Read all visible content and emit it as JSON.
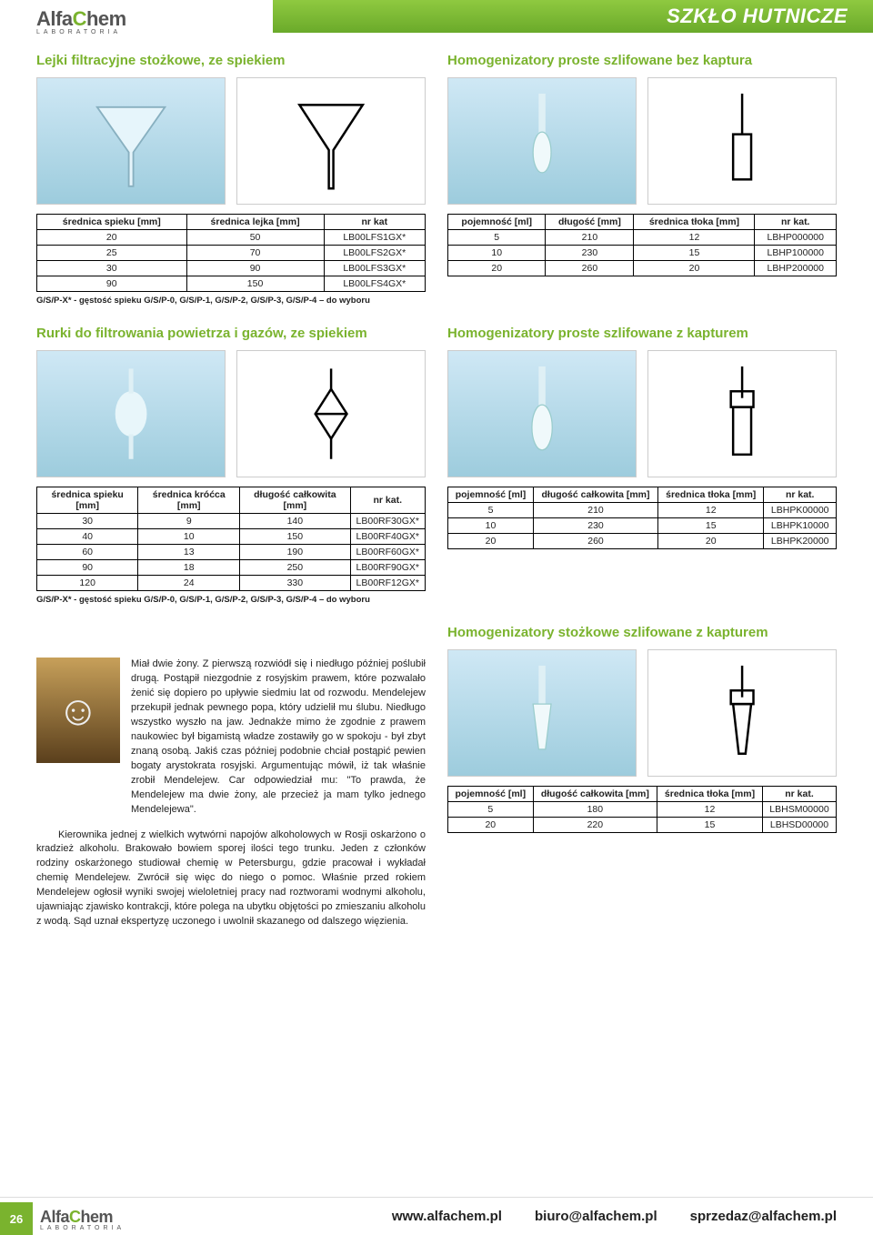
{
  "brand": {
    "name_a": "Alfa",
    "name_c": "C",
    "name_rest": "hem",
    "sub": "LABORATORIA"
  },
  "banner_title": "SZKŁO HUTNICZE",
  "page_number": "26",
  "footer": {
    "url": "www.alfachem.pl",
    "email1": "biuro@alfachem.pl",
    "email2": "sprzedaz@alfachem.pl"
  },
  "sec1": {
    "title": "Lejki filtracyjne stożkowe, ze spiekiem",
    "headers": [
      "średnica spieku [mm]",
      "średnica lejka [mm]",
      "nr kat"
    ],
    "rows": [
      [
        "20",
        "50",
        "LB00LFS1GX*"
      ],
      [
        "25",
        "70",
        "LB00LFS2GX*"
      ],
      [
        "30",
        "90",
        "LB00LFS3GX*"
      ],
      [
        "90",
        "150",
        "LB00LFS4GX*"
      ]
    ],
    "footnote": "G/S/P-X* - gęstość spieku G/S/P-0, G/S/P-1, G/S/P-2, G/S/P-3, G/S/P-4 – do wyboru"
  },
  "sec2": {
    "title": "Homogenizatory proste szlifowane bez kaptura",
    "headers": [
      "pojemność [ml]",
      "długość [mm]",
      "średnica tłoka [mm]",
      "nr kat."
    ],
    "rows": [
      [
        "5",
        "210",
        "12",
        "LBHP000000"
      ],
      [
        "10",
        "230",
        "15",
        "LBHP100000"
      ],
      [
        "20",
        "260",
        "20",
        "LBHP200000"
      ]
    ]
  },
  "sec3": {
    "title": "Rurki do filtrowania powietrza i gazów, ze spiekiem",
    "headers": [
      "średnica spieku [mm]",
      "średnica króćca [mm]",
      "długość całkowita [mm]",
      "nr kat."
    ],
    "rows": [
      [
        "30",
        "9",
        "140",
        "LB00RF30GX*"
      ],
      [
        "40",
        "10",
        "150",
        "LB00RF40GX*"
      ],
      [
        "60",
        "13",
        "190",
        "LB00RF60GX*"
      ],
      [
        "90",
        "18",
        "250",
        "LB00RF90GX*"
      ],
      [
        "120",
        "24",
        "330",
        "LB00RF12GX*"
      ]
    ],
    "footnote": "G/S/P-X* - gęstość spieku G/S/P-0, G/S/P-1, G/S/P-2, G/S/P-3, G/S/P-4 – do wyboru"
  },
  "sec4": {
    "title": "Homogenizatory proste szlifowane z kapturem",
    "headers": [
      "pojemność [ml]",
      "długość całkowita [mm]",
      "średnica tłoka [mm]",
      "nr kat."
    ],
    "rows": [
      [
        "5",
        "210",
        "12",
        "LBHPK00000"
      ],
      [
        "10",
        "230",
        "15",
        "LBHPK10000"
      ],
      [
        "20",
        "260",
        "20",
        "LBHPK20000"
      ]
    ]
  },
  "sec5": {
    "title": "Homogenizatory stożkowe szlifowane z kapturem",
    "headers": [
      "pojemność [ml]",
      "długość całkowita [mm]",
      "średnica tłoka [mm]",
      "nr kat."
    ],
    "rows": [
      [
        "5",
        "180",
        "12",
        "LBHSM00000"
      ],
      [
        "20",
        "220",
        "15",
        "LBHSD00000"
      ]
    ]
  },
  "story": {
    "p1": "Miał dwie żony. Z pierwszą rozwiódł się i niedługo później poślubił drugą. Postąpił niezgodnie z rosyjskim prawem, które pozwalało żenić się dopiero po upływie siedmiu lat od rozwodu. Mendelejew przekupił jednak pewnego popa, który udzielił mu ślubu. Niedługo wszystko wyszło na jaw. Jednakże mimo że zgodnie z prawem naukowiec był bigamistą władze zostawiły go w spokoju - był zbyt znaną osobą. Jakiś czas później podobnie chciał postąpić pewien bogaty arystokrata rosyjski. Argumentując mówił, iż tak właśnie zrobił Mendelejew. Car odpowiedział mu: \"To prawda, że Mendelejew ma dwie żony, ale przecież ja mam tylko jednego Mendelejewa\".",
    "p2": "Kierownika jednej z wielkich wytwórni napojów alkoholowych w Rosji oskarżono o kradzież alkoholu. Brakowało bowiem sporej ilości tego trunku. Jeden z członków rodziny oskarżonego studiował chemię w Petersburgu, gdzie pracował i wykładał chemię Mendelejew. Zwrócił się więc do niego o pomoc. Właśnie przed rokiem Mendelejew ogłosił wyniki swojej wieloletniej pracy nad roztworami wodnymi alkoholu, ujawniając zjawisko kontrakcji, które polega na ubytku objętości po zmieszaniu alkoholu z wodą. Sąd uznał ekspertyzę uczonego i uwolnił skazanego od dalszego więzienia."
  },
  "colors": {
    "accent": "#7ab32e",
    "border": "#000000",
    "photo_bg": "#b8def0"
  }
}
